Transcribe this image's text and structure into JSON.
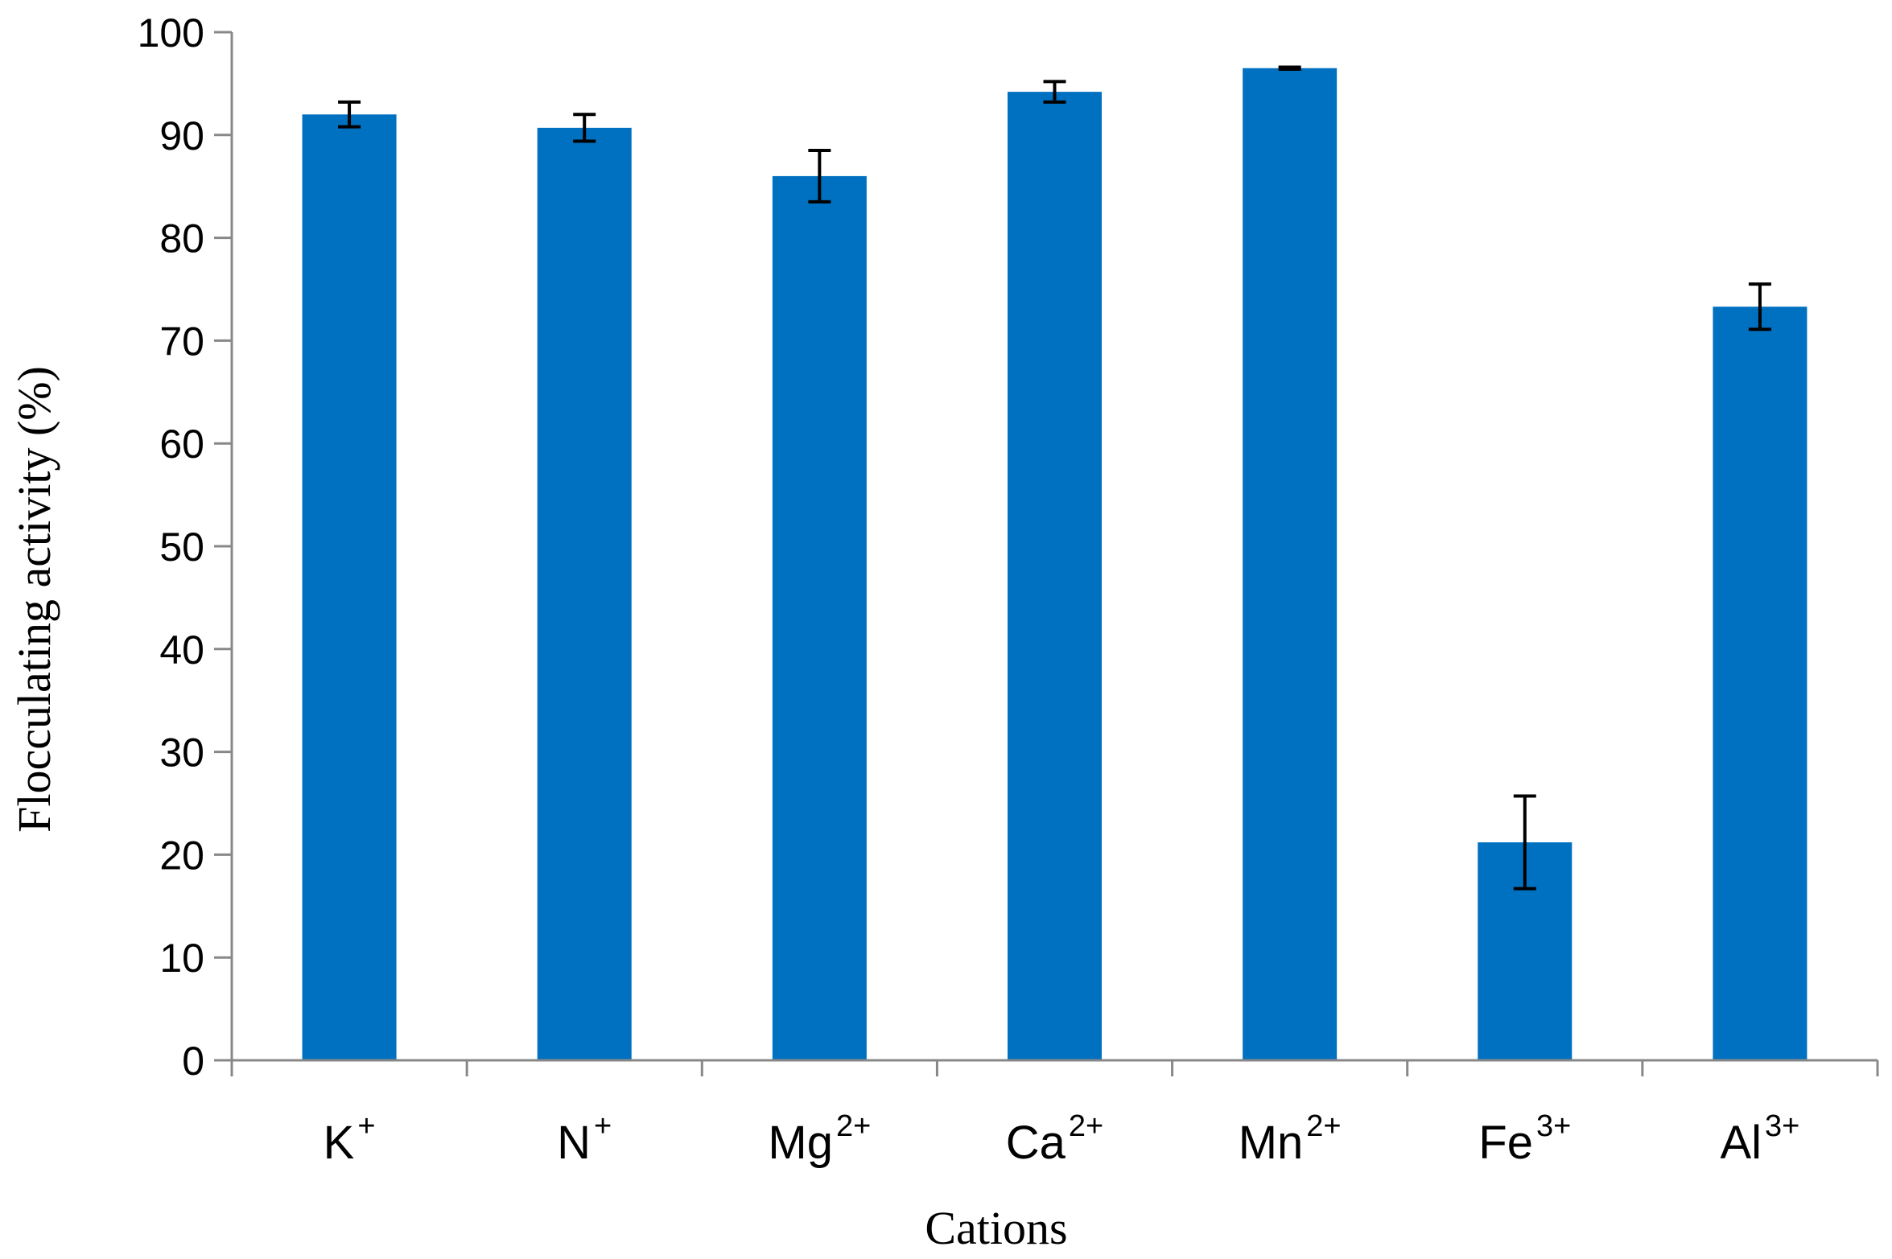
{
  "chart_data": {
    "type": "bar",
    "xlabel": "Cations",
    "ylabel": "Flocculating activity (%)",
    "ylim": [
      0,
      100
    ],
    "yticks": [
      0,
      10,
      20,
      30,
      40,
      50,
      60,
      70,
      80,
      90,
      100
    ],
    "grid": false,
    "legend": "none",
    "categories": [
      {
        "base": "K",
        "sup": "+"
      },
      {
        "base": "N",
        "sup": "+"
      },
      {
        "base": "Mg",
        "sup": "2+"
      },
      {
        "base": "Ca",
        "sup": "2+"
      },
      {
        "base": "Mn",
        "sup": "2+"
      },
      {
        "base": "Fe",
        "sup": "3+"
      },
      {
        "base": "Al",
        "sup": "3+"
      }
    ],
    "values": [
      92.0,
      90.7,
      86.0,
      94.2,
      96.5,
      21.2,
      73.3
    ],
    "errors": [
      1.2,
      1.3,
      2.5,
      1.0,
      0.1,
      4.5,
      2.2
    ],
    "bar_color": "#0070C0",
    "axis_color": "#888888",
    "error_bar_color": "#000000"
  }
}
